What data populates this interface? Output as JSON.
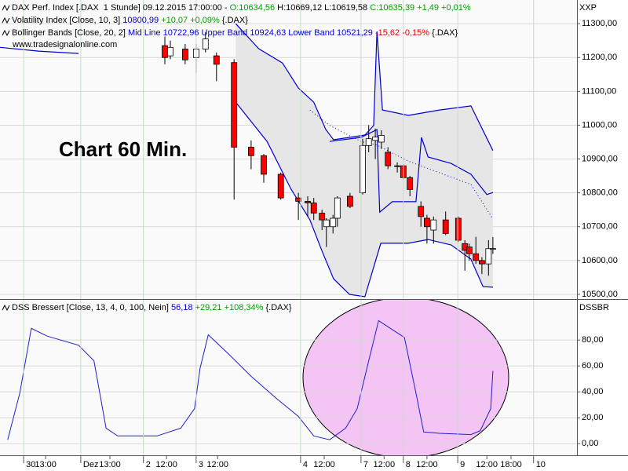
{
  "chart_data": [
    {
      "type": "candlestick",
      "axis_title": "XXP",
      "annotation": "Chart 60 Min.",
      "watermark": "www.tradesignalonline.com",
      "legend": [
        [
          {
            "text": "DAX Perf. Index [.DAX  1 Stunde] 09.12.2015 17:00:00 - ",
            "color": "#000000"
          },
          {
            "text": "O:10634,56",
            "color": "#00a000"
          },
          {
            "text": " H:10669,12 L:10619,58 ",
            "color": "#000000"
          },
          {
            "text": "C:10635,39 +1,49 +0,01%",
            "color": "#00a000"
          }
        ],
        [
          {
            "text": "Volatility Index [Close, 10, 3] ",
            "color": "#000000"
          },
          {
            "text": "10800,99 ",
            "color": "#0000cc"
          },
          {
            "text": "+10,07 +0,09%",
            "color": "#00a000"
          },
          {
            "text": " {.DAX}",
            "color": "#000000"
          }
        ],
        [
          {
            "text": "Bollinger Bands [Close, 20, 2] ",
            "color": "#000000"
          },
          {
            "text": "Mid Line 10722,96 Upper Band 10924,63 Lower Band 10521,29",
            "color": "#0000cc"
          },
          {
            "text": " -15,62 -0,15%",
            "color": "#dd0000"
          },
          {
            "text": " {.DAX}",
            "color": "#000000"
          }
        ]
      ],
      "up_color": "#ffffff",
      "down_color": "#ff0000",
      "x": [
        30,
        31,
        33.7,
        35.7,
        37.4,
        39.4,
        42.6,
        45.7,
        48,
        51.1,
        54.3,
        56,
        57.1,
        58.6,
        59.4,
        60.6,
        61.4,
        63.7,
        66,
        67.1,
        68.3,
        69.4,
        70.6,
        72.3,
        73.4,
        74.6,
        76.6,
        77.7,
        78.9,
        81.1,
        83.4,
        84.6,
        85.4,
        86.6,
        87.7,
        88.9,
        89.7
      ],
      "open": [
        11235,
        11205,
        11225,
        11200,
        11225,
        11205,
        11185,
        10935,
        10910,
        10855,
        10785,
        10775,
        10770,
        10740,
        10700,
        10700,
        10725,
        10790,
        10800,
        10940,
        10955,
        10950,
        10920,
        10880,
        10880,
        10845,
        10760,
        10725,
        10690,
        10720,
        10725,
        10650,
        10640,
        10620,
        10600,
        10590,
        10634.56
      ],
      "high": [
        11262,
        11250,
        11240,
        11240,
        11275,
        11215,
        11195,
        10955,
        10915,
        10860,
        10800,
        10790,
        10785,
        10750,
        10725,
        10735,
        10790,
        10800,
        10960,
        11000,
        10990,
        10985,
        10935,
        10890,
        10885,
        10850,
        10775,
        10735,
        10730,
        10745,
        10730,
        10660,
        10650,
        10670,
        10610,
        10660,
        10669.12
      ],
      "low": [
        11180,
        11195,
        11180,
        11155,
        11215,
        11130,
        10780,
        10870,
        10830,
        10780,
        10720,
        10730,
        10720,
        10690,
        10640,
        10680,
        10700,
        10755,
        10795,
        10920,
        10900,
        10930,
        10870,
        10860,
        10840,
        10790,
        10700,
        10650,
        10650,
        10675,
        10655,
        10570,
        10600,
        10590,
        10560,
        10555,
        10619.58
      ],
      "close": [
        11200,
        11230,
        11193,
        11225,
        11255,
        11180,
        10935,
        10910,
        10855,
        10785,
        10775,
        10770,
        10740,
        10720,
        10720,
        10725,
        10785,
        10760,
        10940,
        10960,
        10965,
        10970,
        10880,
        10878,
        10845,
        10810,
        10730,
        10700,
        10720,
        10680,
        10660,
        10630,
        10620,
        10600,
        10590,
        10635,
        10635.39
      ],
      "lines": [
        {
          "color": "#0000cc",
          "style": "solid",
          "x": [
            0,
            7,
            14.3,
            null,
            60,
            65.7,
            68.6,
            69.1,
            71.4,
            75.7,
            76.7,
            77.9,
            82.1,
            85.7,
            88.6,
            89.7
          ],
          "values": [
            11230,
            11219,
            11212,
            null,
            10952,
            10964,
            10987,
            10743,
            10774,
            10774,
            10964,
            10906,
            10887,
            10855,
            10795,
            10801
          ]
        },
        {
          "color": "#0000cc",
          "style": "solid",
          "x": [
            42.9,
            47.1,
            51.4,
            54.3,
            57.1,
            59.3,
            60.7,
            63.6,
            66.4,
            68,
            68.6,
            69.6,
            74.3,
            80,
            85.7,
            89.7
          ],
          "values": [
            11300,
            11226,
            11184,
            11110,
            11068,
            10987,
            10957,
            10964,
            10971,
            10999,
            11277,
            11045,
            11029,
            11045,
            11057,
            10925
          ]
        },
        {
          "color": "#0000cc",
          "style": "dotted",
          "x": [
            56.4,
            60,
            65.7,
            68.6,
            74.3,
            80,
            85.7,
            89.7
          ],
          "values": [
            11045,
            10999,
            10952,
            10941,
            10894,
            10859,
            10825,
            10723
          ]
        },
        {
          "color": "#0000cc",
          "style": "solid",
          "x": [
            42.9,
            48.6,
            52.9,
            56.4,
            58.6,
            60.7,
            63.6,
            66.4,
            69.3,
            74.3,
            77.9,
            82.1,
            85.7,
            87.9,
            89.7
          ],
          "values": [
            11068,
            10952,
            10813,
            10720,
            10628,
            10546,
            10500,
            10493,
            10651,
            10651,
            10662,
            10646,
            10604,
            10523,
            10521
          ]
        }
      ],
      "band_fill": "#e6e6e6",
      "xlim": [
        0,
        105
      ],
      "ylim": [
        10486,
        11370
      ],
      "yticks": [
        {
          "value": 10500,
          "label": "10500,00"
        },
        {
          "value": 10600,
          "label": "10600,00"
        },
        {
          "value": 10700,
          "label": "10700,00"
        },
        {
          "value": 10800,
          "label": "10800,00"
        },
        {
          "value": 10900,
          "label": "10900,00"
        },
        {
          "value": 11000,
          "label": "11000,00"
        },
        {
          "value": 11100,
          "label": "11100,00"
        },
        {
          "value": 11200,
          "label": "11200,00"
        },
        {
          "value": 11300,
          "label": "11300,00"
        }
      ],
      "grid": true
    },
    {
      "type": "line",
      "axis_title": "DSSBR",
      "legend": [
        [
          {
            "text": "DSS Bressert [Close, 13, 4, 0, 100, Nein] ",
            "color": "#000000"
          },
          {
            "text": "56,18 ",
            "color": "#0000cc"
          },
          {
            "text": "+29,21 +108,34%",
            "color": "#00a000"
          },
          {
            "text": " {.DAX}",
            "color": "#000000"
          }
        ]
      ],
      "color": "#2020cc",
      "x": [
        1.4,
        3.6,
        5.7,
        8.6,
        14.3,
        17.1,
        19.3,
        21.4,
        28.6,
        32.9,
        35.4,
        36.4,
        37.9,
        41.4,
        45.7,
        50,
        54.3,
        57.1,
        60,
        62.9,
        65,
        67.1,
        68.9,
        71.4,
        73.6,
        75.7,
        77.1,
        80,
        85.7,
        87.4,
        89.3,
        89.7
      ],
      "values": [
        3,
        39,
        89,
        83,
        76,
        64,
        12,
        6,
        6,
        12,
        27,
        58,
        84,
        70,
        52,
        36,
        21,
        6,
        3,
        12,
        27,
        64,
        95,
        88,
        82,
        39,
        9,
        8,
        7,
        10,
        27,
        56.18
      ],
      "xlim": [
        0,
        105
      ],
      "ylim": [
        -9,
        111
      ],
      "yticks": [
        {
          "value": 0,
          "label": "0,00"
        },
        {
          "value": 20,
          "label": "20,00"
        },
        {
          "value": 40,
          "label": "40,00"
        },
        {
          "value": 60,
          "label": "60,00"
        },
        {
          "value": 80,
          "label": "80,00"
        }
      ],
      "xticks": [
        {
          "value": 4.3,
          "label": "30"
        },
        {
          "value": 14.7,
          "label": "Dez"
        },
        {
          "value": 26.1,
          "label": "2"
        },
        {
          "value": 35.7,
          "label": "3"
        },
        {
          "value": 54.7,
          "label": "4"
        },
        {
          "value": 65.7,
          "label": "7"
        },
        {
          "value": 73.4,
          "label": "8"
        },
        {
          "value": 83.3,
          "label": "9"
        },
        {
          "value": 97.1,
          "label": "10"
        }
      ],
      "xminor_ticks": [
        {
          "value": 8.3,
          "label": "13:00"
        },
        {
          "value": 20,
          "label": "13:00"
        },
        {
          "value": 30.3,
          "label": "12:00"
        },
        {
          "value": 39.6,
          "label": "12:00"
        },
        {
          "value": 59,
          "label": "12:00"
        },
        {
          "value": 69.9,
          "label": "12:00"
        },
        {
          "value": 77.7,
          "label": "12:00"
        },
        {
          "value": 88.6,
          "label": "12:00"
        },
        {
          "value": 93,
          "label": "18:00"
        }
      ],
      "grid": true
    }
  ]
}
